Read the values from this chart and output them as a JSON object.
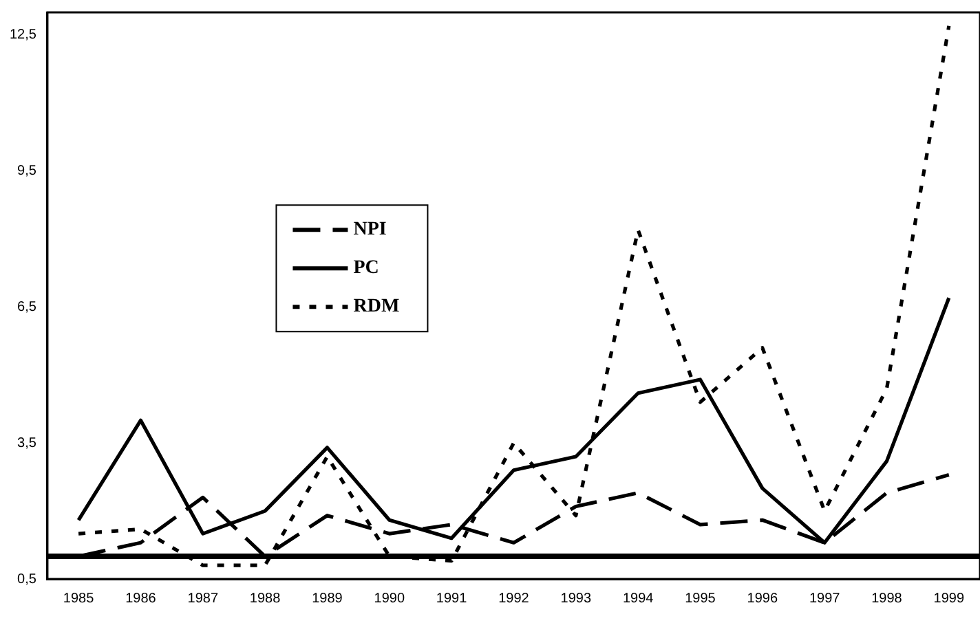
{
  "chart_data": {
    "type": "line",
    "categories": [
      "1985",
      "1986",
      "1987",
      "1988",
      "1989",
      "1990",
      "1991",
      "1992",
      "1993",
      "1994",
      "1995",
      "1996",
      "1997",
      "1998",
      "1999"
    ],
    "series": [
      {
        "name": "NPI",
        "color": "#000000",
        "line_style": "dashed",
        "values": [
          1.0,
          1.3,
          2.3,
          1.0,
          1.9,
          1.5,
          1.7,
          1.3,
          2.1,
          2.4,
          1.7,
          1.8,
          1.3,
          2.4,
          2.8
        ]
      },
      {
        "name": "PC",
        "color": "#000000",
        "line_style": "solid",
        "values": [
          1.8,
          4.0,
          1.5,
          2.0,
          3.4,
          1.8,
          1.4,
          2.9,
          3.2,
          4.6,
          4.9,
          2.5,
          1.3,
          3.1,
          6.7
        ]
      },
      {
        "name": "RDM",
        "color": "#000000",
        "line_style": "dotted",
        "values": [
          1.5,
          1.6,
          0.8,
          0.8,
          3.2,
          1.0,
          0.9,
          3.5,
          1.9,
          8.2,
          4.4,
          5.6,
          2.0,
          4.7,
          12.7
        ]
      }
    ],
    "ylim": [
      0.5,
      13
    ],
    "yticks": [
      {
        "value": 0.5,
        "label": "0,5"
      },
      {
        "value": 3.5,
        "label": "3,5"
      },
      {
        "value": 6.5,
        "label": "6,5"
      },
      {
        "value": 9.5,
        "label": "9,5"
      },
      {
        "value": 12.5,
        "label": "12,5"
      }
    ],
    "ref_lines": [
      {
        "axis": "y",
        "value": 1.0,
        "color": "#000000",
        "line_style": "solid"
      }
    ],
    "grid": false,
    "legend": "center",
    "marker": "none"
  }
}
